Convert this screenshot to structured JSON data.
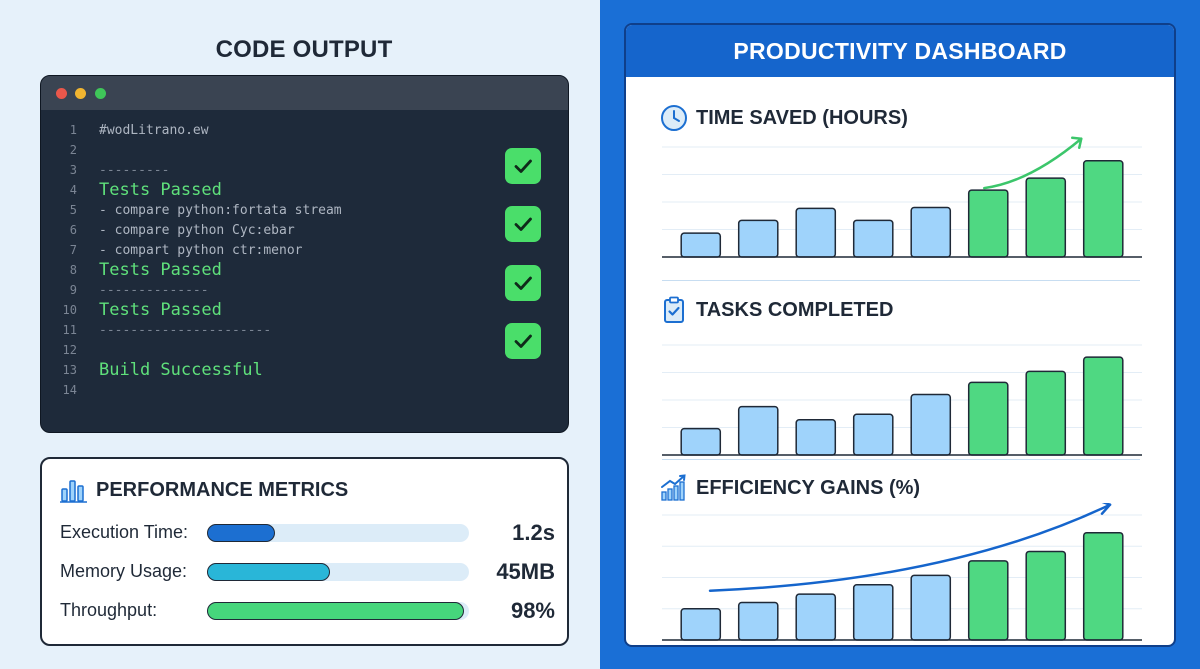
{
  "code_output": {
    "title": "CODE OUTPUT",
    "lines": [
      {
        "num": "1",
        "text": "#wodLitrano.ew",
        "style": "plain"
      },
      {
        "num": "2",
        "text": "",
        "style": "plain"
      },
      {
        "num": "3",
        "text": "---------",
        "style": "dash"
      },
      {
        "num": "4",
        "text": "Tests Passed",
        "style": "green"
      },
      {
        "num": "5",
        "text": "- compare python:fortata stream",
        "style": "plain"
      },
      {
        "num": "6",
        "text": "- compare python Cyc:ebar",
        "style": "plain"
      },
      {
        "num": "7",
        "text": "- compart python ctr:menor",
        "style": "plain"
      },
      {
        "num": "8",
        "text": "Tests Passed",
        "style": "green"
      },
      {
        "num": "9",
        "text": "--------------",
        "style": "dash"
      },
      {
        "num": "10",
        "text": "Tests Passed",
        "style": "green"
      },
      {
        "num": "11",
        "text": "----------------------",
        "style": "dash"
      },
      {
        "num": "12",
        "text": "",
        "style": "plain"
      },
      {
        "num": "13",
        "text": "Build Successful",
        "style": "green"
      },
      {
        "num": "14",
        "text": "",
        "style": "plain"
      }
    ],
    "checks": [
      "check-icon",
      "check-icon",
      "check-icon",
      "check-icon"
    ]
  },
  "metrics": {
    "title": "PERFORMANCE METRICS",
    "icon": "bar-chart-icon",
    "rows": [
      {
        "label": "Execution Time:",
        "value": "1.2s",
        "fill": 0.26,
        "color": "#1c6fd1"
      },
      {
        "label": "Memory Usage:",
        "value": "45MB",
        "fill": 0.47,
        "color": "#29b6d8"
      },
      {
        "label": "Throughput:",
        "value": "98%",
        "fill": 0.98,
        "color": "#46d67c"
      }
    ]
  },
  "dashboard": {
    "title": "PRODUCTIVITY DASHBOARD",
    "colors": {
      "blue_bar": "#9fd3fb",
      "green_bar": "#4fd882",
      "outline": "#1f2937"
    },
    "chart_data": [
      {
        "type": "bar",
        "title": "TIME SAVED (HOURS)",
        "icon": "clock-icon",
        "values": [
          2.6,
          4.0,
          5.3,
          4.0,
          5.4,
          7.3,
          8.6,
          10.5
        ],
        "highlight": [
          false,
          false,
          false,
          false,
          false,
          true,
          true,
          true
        ],
        "trend_arrow": "green",
        "ylim": [
          0,
          12
        ],
        "grid": true
      },
      {
        "type": "bar",
        "title": "TASKS COMPLETED",
        "icon": "clipboard-check-icon",
        "values": [
          2.4,
          4.4,
          3.2,
          3.7,
          5.5,
          6.6,
          7.6,
          8.9
        ],
        "highlight": [
          false,
          false,
          false,
          false,
          false,
          true,
          true,
          true
        ],
        "ylim": [
          0,
          10
        ],
        "grid": true
      },
      {
        "type": "bar",
        "title": "EFFICIENCY GAINS (%)",
        "icon": "trending-chart-icon",
        "values": [
          3.0,
          3.6,
          4.4,
          5.3,
          6.2,
          7.6,
          8.5,
          10.3
        ],
        "highlight": [
          false,
          false,
          false,
          false,
          false,
          true,
          true,
          true
        ],
        "trend_arrow": "blue",
        "ylim": [
          0,
          12
        ],
        "grid": true
      }
    ]
  }
}
